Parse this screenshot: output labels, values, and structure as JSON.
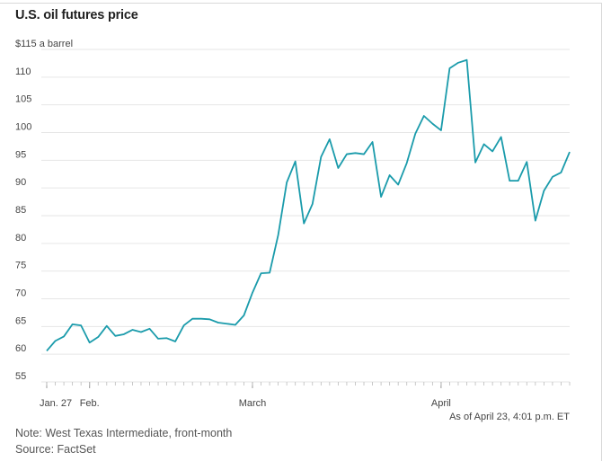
{
  "chart_data": {
    "type": "line",
    "title": "U.S. oil futures price",
    "ylabel": "$115 a barrel",
    "ylim": [
      55,
      115
    ],
    "yticks": [
      {
        "value": 115,
        "label": "$115 a barrel"
      },
      {
        "value": 110,
        "label": "110"
      },
      {
        "value": 105,
        "label": "105"
      },
      {
        "value": 100,
        "label": "100"
      },
      {
        "value": 95,
        "label": "95"
      },
      {
        "value": 90,
        "label": "90"
      },
      {
        "value": 85,
        "label": "85"
      },
      {
        "value": 80,
        "label": "80"
      },
      {
        "value": 75,
        "label": "75"
      },
      {
        "value": 70,
        "label": "70"
      },
      {
        "value": 65,
        "label": "65"
      },
      {
        "value": 60,
        "label": "60"
      },
      {
        "value": 55,
        "label": "55"
      }
    ],
    "xticks": [
      {
        "index": 0,
        "label": "Jan. 27"
      },
      {
        "index": 5,
        "label": "Feb."
      },
      {
        "index": 24,
        "label": "March"
      },
      {
        "index": 46,
        "label": "April"
      }
    ],
    "color": "#1a9bab",
    "series": [
      {
        "name": "West Texas Intermediate, front-month",
        "values": [
          60.6,
          62.4,
          63.2,
          65.4,
          65.2,
          62.1,
          63.1,
          65.1,
          63.3,
          63.6,
          64.4,
          64.0,
          64.6,
          62.8,
          62.9,
          62.3,
          65.2,
          66.4,
          66.4,
          66.3,
          65.7,
          65.5,
          65.3,
          67.0,
          71.1,
          74.6,
          74.7,
          81.5,
          91.0,
          94.8,
          83.6,
          87.1,
          95.6,
          98.8,
          93.6,
          96.1,
          96.3,
          96.1,
          98.3,
          88.4,
          92.3,
          90.6,
          94.5,
          99.8,
          103.0,
          101.6,
          100.4,
          111.6,
          112.6,
          113.1,
          94.6,
          97.9,
          96.6,
          99.2,
          91.3,
          91.3,
          94.7,
          84.1,
          89.5,
          92.0,
          92.8,
          96.5
        ]
      }
    ],
    "note": "Note: West Texas Intermediate, front-month",
    "source": "Source: FactSet",
    "as_of": "As of April 23, 4:01 p.m. ET"
  }
}
